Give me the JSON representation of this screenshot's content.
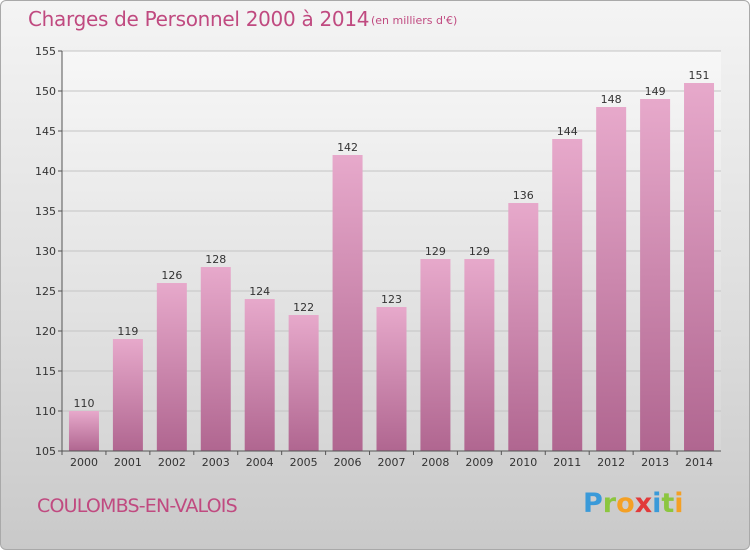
{
  "header": {
    "title": "Charges de Personnel 2000 à 2014",
    "subtitle": "(en milliers d'€)"
  },
  "footer": {
    "commune": "COULOMBS-EN-VALOIS",
    "logo": {
      "letters": [
        "P",
        "r",
        "o",
        "x",
        "i",
        "t",
        "i"
      ],
      "colors": [
        "#3a9ad9",
        "#8cc63f",
        "#f4a024",
        "#e23a3a",
        "#3a9ad9",
        "#8cc63f",
        "#f4a024"
      ]
    }
  },
  "chart_data": {
    "type": "bar",
    "title": "Charges de Personnel 2000 à 2014",
    "subtitle": "(en milliers d'€)",
    "categories": [
      "2000",
      "2001",
      "2002",
      "2003",
      "2004",
      "2005",
      "2006",
      "2007",
      "2008",
      "2009",
      "2010",
      "2011",
      "2012",
      "2013",
      "2014"
    ],
    "values": [
      110,
      119,
      126,
      128,
      124,
      122,
      142,
      123,
      129,
      129,
      136,
      144,
      148,
      149,
      151
    ],
    "ylim": [
      105,
      155
    ],
    "yticks": [
      105,
      110,
      115,
      120,
      125,
      130,
      135,
      140,
      145,
      150,
      155
    ],
    "grid": true,
    "colors": {
      "bar_top": "#e7a9cb",
      "bar_bottom": "#b06690",
      "accent": "#c04a80"
    }
  }
}
